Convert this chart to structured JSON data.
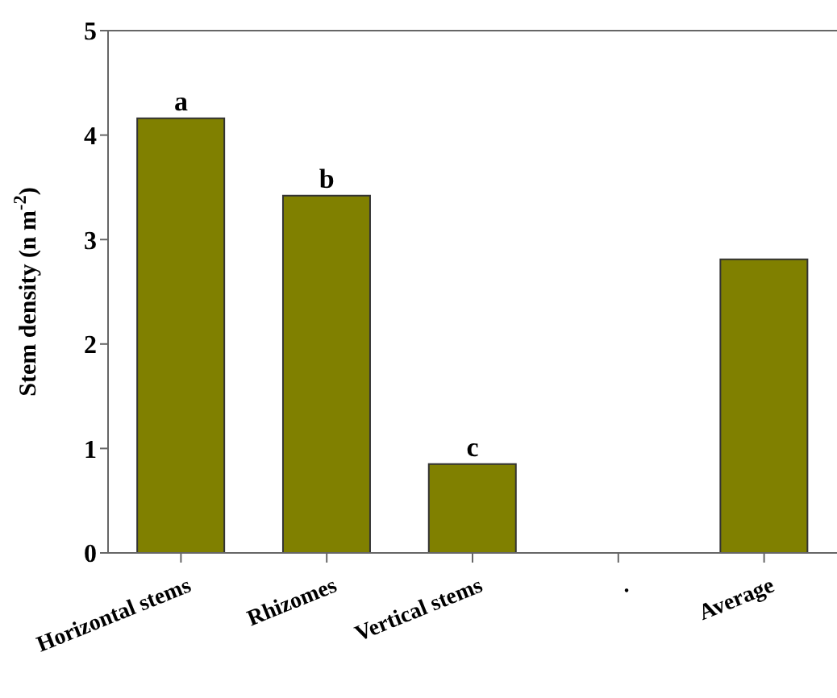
{
  "chart_data": {
    "type": "bar",
    "ylabel": "Stem density (n m$^{-2}$)",
    "categories": [
      "Horizontal stems",
      "Rhizomes",
      "Vertical stems",
      ".",
      "Average"
    ],
    "values": [
      4.16,
      3.42,
      0.85,
      null,
      2.81
    ],
    "color": "#808000",
    "ylim": [
      0,
      5
    ],
    "yticks": [
      0,
      1,
      2,
      3,
      4,
      5
    ],
    "grid": false,
    "legend": false,
    "annotations": [
      {
        "text": "a",
        "x": "Horizontal stems",
        "y": 4.16
      },
      {
        "text": "b",
        "x": "Rhizomes",
        "y": 3.42
      },
      {
        "text": "c",
        "x": "Vertical stems",
        "y": 0.85
      }
    ]
  }
}
